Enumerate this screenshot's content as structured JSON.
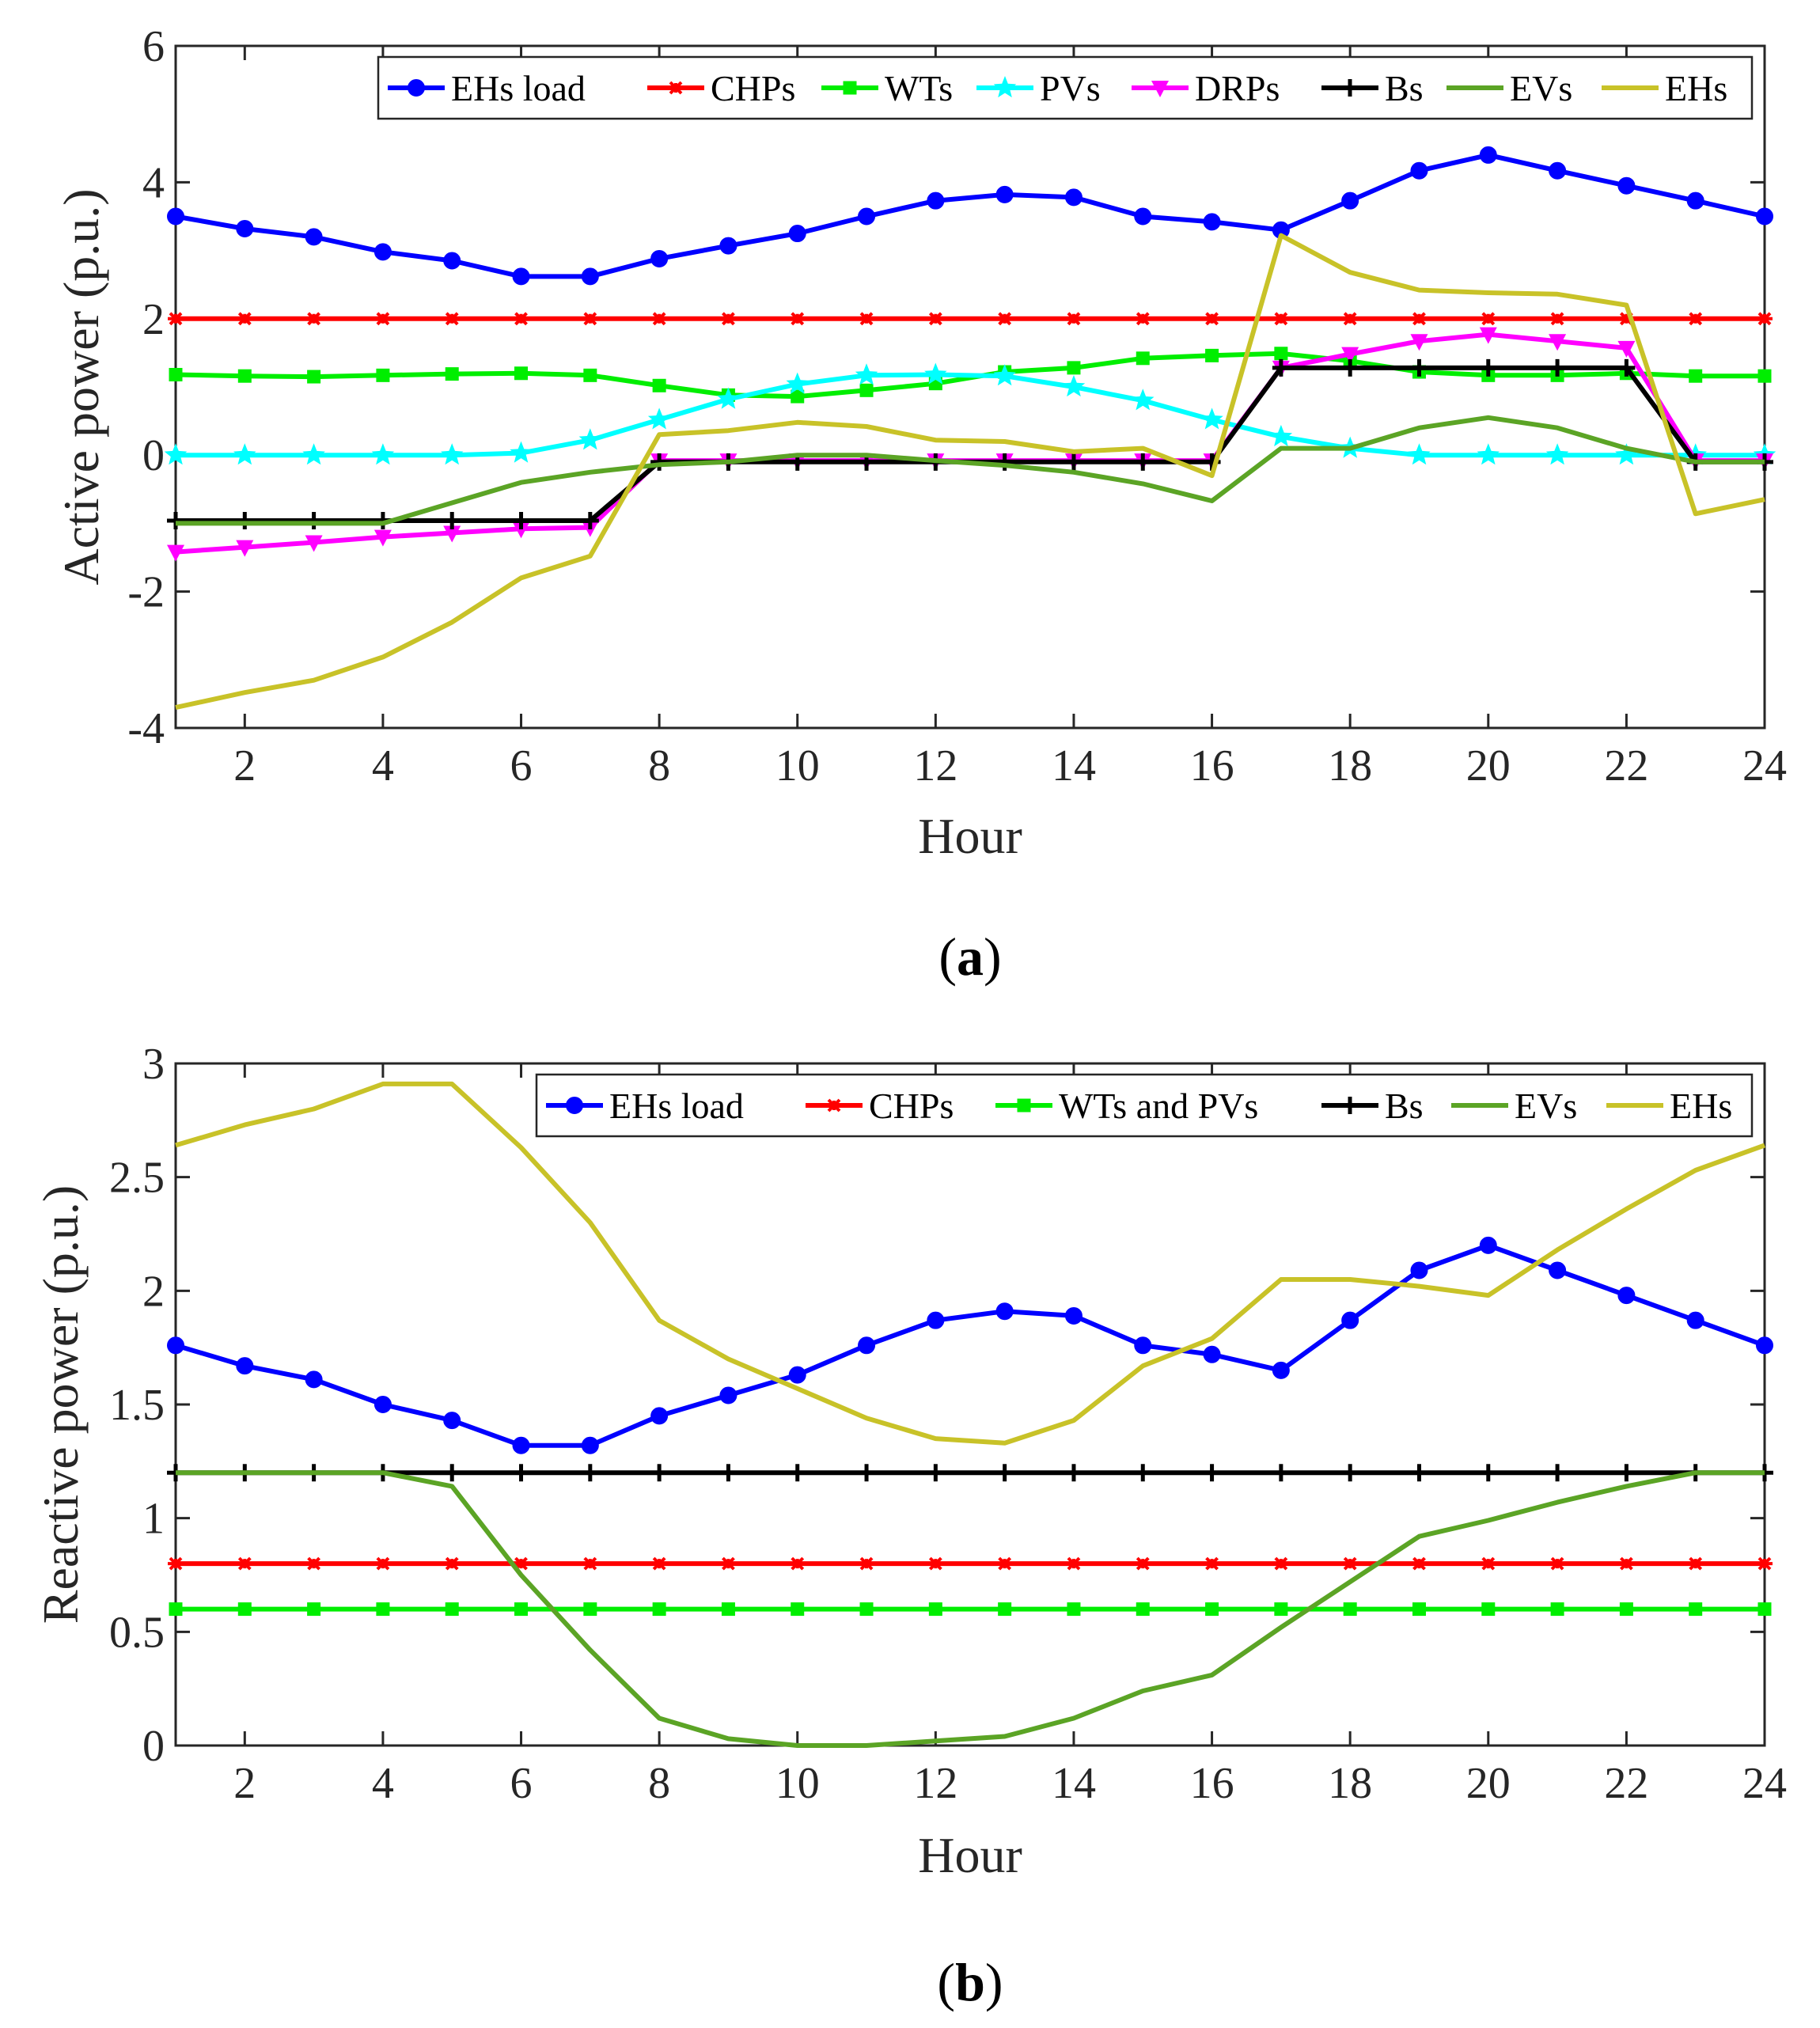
{
  "charts": [
    {
      "id": "a",
      "caption": {
        "open": "(",
        "label": "a",
        "close": ")"
      },
      "chart_data": {
        "type": "line",
        "xlabel": "Hour",
        "ylabel": "Active power (p.u.)",
        "xlim": [
          1,
          24
        ],
        "ylim": [
          -4,
          6
        ],
        "xticks": [
          "2",
          "4",
          "6",
          "8",
          "10",
          "12",
          "14",
          "16",
          "18",
          "20",
          "22",
          "24"
        ],
        "xtick_values": [
          2,
          4,
          6,
          8,
          10,
          12,
          14,
          16,
          18,
          20,
          22,
          24
        ],
        "yticks": [
          "-4",
          "-2",
          "0",
          "2",
          "4",
          "6"
        ],
        "ytick_values": [
          -4,
          -2,
          0,
          2,
          4,
          6
        ],
        "legend_position": "top-right",
        "x": [
          1,
          2,
          3,
          4,
          5,
          6,
          7,
          8,
          9,
          10,
          11,
          12,
          13,
          14,
          15,
          16,
          17,
          18,
          19,
          20,
          21,
          22,
          23,
          24
        ],
        "series": [
          {
            "name": "EHs load",
            "color": "#0000ff",
            "marker": "circle",
            "values": [
              3.5,
              3.32,
              3.2,
              2.98,
              2.85,
              2.62,
              2.62,
              2.88,
              3.07,
              3.25,
              3.5,
              3.73,
              3.82,
              3.78,
              3.5,
              3.42,
              3.3,
              3.73,
              4.17,
              4.4,
              4.17,
              3.95,
              3.73,
              3.5
            ]
          },
          {
            "name": "CHPs",
            "color": "#ff0000",
            "marker": "asterisk",
            "values": [
              2,
              2,
              2,
              2,
              2,
              2,
              2,
              2,
              2,
              2,
              2,
              2,
              2,
              2,
              2,
              2,
              2,
              2,
              2,
              2,
              2,
              2,
              2,
              2
            ]
          },
          {
            "name": "WTs",
            "color": "#00ee00",
            "marker": "square",
            "values": [
              1.18,
              1.16,
              1.15,
              1.17,
              1.19,
              1.2,
              1.17,
              1.02,
              0.88,
              0.86,
              0.95,
              1.05,
              1.22,
              1.28,
              1.42,
              1.46,
              1.49,
              1.38,
              1.22,
              1.17,
              1.17,
              1.2,
              1.16,
              1.16
            ]
          },
          {
            "name": "PVs",
            "color": "#00ffff",
            "marker": "star",
            "values": [
              0,
              0,
              0,
              0,
              0,
              0.03,
              0.22,
              0.52,
              0.82,
              1.04,
              1.17,
              1.18,
              1.16,
              1.0,
              0.8,
              0.52,
              0.27,
              0.1,
              0,
              0,
              0,
              0,
              0,
              0
            ]
          },
          {
            "name": "DRPs",
            "color": "#ff00ff",
            "marker": "triangle-down",
            "values": [
              -1.42,
              -1.35,
              -1.28,
              -1.2,
              -1.14,
              -1.08,
              -1.06,
              -0.08,
              -0.08,
              -0.08,
              -0.08,
              -0.08,
              -0.08,
              -0.08,
              -0.08,
              -0.08,
              1.28,
              1.48,
              1.67,
              1.77,
              1.67,
              1.57,
              -0.08,
              -0.08
            ]
          },
          {
            "name": "Bs",
            "color": "#000000",
            "marker": "plus",
            "values": [
              -0.96,
              -0.96,
              -0.96,
              -0.96,
              -0.96,
              -0.96,
              -0.96,
              -0.1,
              -0.1,
              -0.1,
              -0.1,
              -0.1,
              -0.1,
              -0.1,
              -0.1,
              -0.1,
              1.28,
              1.28,
              1.28,
              1.28,
              1.28,
              1.28,
              -0.1,
              -0.1
            ]
          },
          {
            "name": "EVs",
            "color": "#5ba425",
            "marker": "none",
            "values": [
              -1,
              -1,
              -1,
              -1,
              -0.7,
              -0.4,
              -0.25,
              -0.14,
              -0.1,
              0,
              0,
              -0.08,
              -0.15,
              -0.25,
              -0.42,
              -0.67,
              0.1,
              0.1,
              0.4,
              0.55,
              0.4,
              0.1,
              -0.1,
              -0.1
            ]
          },
          {
            "name": "EHs",
            "color": "#c8c228",
            "marker": "none",
            "values": [
              -3.7,
              -3.48,
              -3.3,
              -2.96,
              -2.45,
              -1.8,
              -1.48,
              0.3,
              0.36,
              0.48,
              0.42,
              0.22,
              0.2,
              0.05,
              0.1,
              -0.3,
              3.22,
              2.68,
              2.42,
              2.38,
              2.36,
              2.2,
              -0.86,
              -0.65
            ]
          }
        ]
      }
    },
    {
      "id": "b",
      "caption": {
        "open": "(",
        "label": "b",
        "close": ")"
      },
      "chart_data": {
        "type": "line",
        "xlabel": "Hour",
        "ylabel": "Reactive power (p.u.)",
        "xlim": [
          1,
          24
        ],
        "ylim": [
          0,
          3
        ],
        "xticks": [
          "2",
          "4",
          "6",
          "8",
          "10",
          "12",
          "14",
          "16",
          "18",
          "20",
          "22",
          "24"
        ],
        "xtick_values": [
          2,
          4,
          6,
          8,
          10,
          12,
          14,
          16,
          18,
          20,
          22,
          24
        ],
        "yticks": [
          "0",
          "0.5",
          "1",
          "1.5",
          "2",
          "2.5",
          "3"
        ],
        "ytick_values": [
          0,
          0.5,
          1,
          1.5,
          2,
          2.5,
          3
        ],
        "legend_position": "top-right",
        "x": [
          1,
          2,
          3,
          4,
          5,
          6,
          7,
          8,
          9,
          10,
          11,
          12,
          13,
          14,
          15,
          16,
          17,
          18,
          19,
          20,
          21,
          22,
          23,
          24
        ],
        "series": [
          {
            "name": "EHs load",
            "color": "#0000ff",
            "marker": "circle",
            "values": [
              1.76,
              1.67,
              1.61,
              1.5,
              1.43,
              1.32,
              1.32,
              1.45,
              1.54,
              1.63,
              1.76,
              1.87,
              1.91,
              1.89,
              1.76,
              1.72,
              1.65,
              1.87,
              2.09,
              2.2,
              2.09,
              1.98,
              1.87,
              1.76
            ]
          },
          {
            "name": "CHPs",
            "color": "#ff0000",
            "marker": "asterisk",
            "values": [
              0.8,
              0.8,
              0.8,
              0.8,
              0.8,
              0.8,
              0.8,
              0.8,
              0.8,
              0.8,
              0.8,
              0.8,
              0.8,
              0.8,
              0.8,
              0.8,
              0.8,
              0.8,
              0.8,
              0.8,
              0.8,
              0.8,
              0.8,
              0.8
            ]
          },
          {
            "name": "WTs and PVs",
            "color": "#00ee00",
            "marker": "square",
            "values": [
              0.6,
              0.6,
              0.6,
              0.6,
              0.6,
              0.6,
              0.6,
              0.6,
              0.6,
              0.6,
              0.6,
              0.6,
              0.6,
              0.6,
              0.6,
              0.6,
              0.6,
              0.6,
              0.6,
              0.6,
              0.6,
              0.6,
              0.6,
              0.6
            ]
          },
          {
            "name": "Bs",
            "color": "#000000",
            "marker": "plus",
            "values": [
              1.2,
              1.2,
              1.2,
              1.2,
              1.2,
              1.2,
              1.2,
              1.2,
              1.2,
              1.2,
              1.2,
              1.2,
              1.2,
              1.2,
              1.2,
              1.2,
              1.2,
              1.2,
              1.2,
              1.2,
              1.2,
              1.2,
              1.2,
              1.2
            ]
          },
          {
            "name": "EVs",
            "color": "#5ba425",
            "marker": "none",
            "values": [
              1.2,
              1.2,
              1.2,
              1.2,
              1.14,
              0.75,
              0.42,
              0.12,
              0.03,
              0,
              0,
              0.02,
              0.04,
              0.12,
              0.24,
              0.31,
              0.52,
              0.72,
              0.92,
              0.99,
              1.07,
              1.14,
              1.2,
              1.2
            ]
          },
          {
            "name": "EHs",
            "color": "#c8c228",
            "marker": "none",
            "values": [
              2.64,
              2.73,
              2.8,
              2.91,
              2.91,
              2.63,
              2.3,
              1.87,
              1.7,
              1.57,
              1.44,
              1.35,
              1.33,
              1.43,
              1.67,
              1.79,
              2.05,
              2.05,
              2.02,
              1.98,
              2.18,
              2.36,
              2.53,
              2.64
            ]
          }
        ]
      }
    }
  ]
}
